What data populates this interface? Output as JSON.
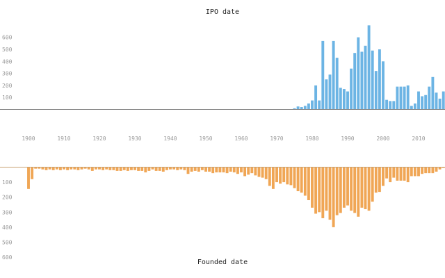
{
  "chart_data": [
    {
      "type": "bar",
      "title": "IPO date",
      "color": "#6cb4e4",
      "x_range": [
        1900,
        2017
      ],
      "ylim": [
        0,
        700
      ],
      "y_ticks": [
        "100",
        "200",
        "300",
        "400",
        "500",
        "600"
      ],
      "x": [
        1975,
        1976,
        1977,
        1978,
        1979,
        1980,
        1981,
        1982,
        1983,
        1984,
        1985,
        1986,
        1987,
        1988,
        1989,
        1990,
        1991,
        1992,
        1993,
        1994,
        1995,
        1996,
        1997,
        1998,
        1999,
        2000,
        2001,
        2002,
        2003,
        2004,
        2005,
        2006,
        2007,
        2008,
        2009,
        2010,
        2011,
        2012,
        2013,
        2014,
        2015,
        2016,
        2017
      ],
      "values": [
        10,
        25,
        20,
        30,
        50,
        75,
        200,
        75,
        570,
        250,
        290,
        570,
        430,
        180,
        170,
        150,
        340,
        470,
        600,
        480,
        530,
        700,
        490,
        320,
        500,
        400,
        80,
        70,
        70,
        190,
        190,
        190,
        200,
        30,
        50,
        150,
        110,
        120,
        190,
        270,
        140,
        90,
        150
      ]
    },
    {
      "type": "bar",
      "title": "Founded date",
      "color": "#f0a655",
      "orientation": "downward",
      "x_range": [
        1900,
        2017
      ],
      "ylim": [
        0,
        600
      ],
      "y_ticks": [
        "100",
        "200",
        "300",
        "400",
        "500",
        "600"
      ],
      "x": [
        1900,
        1901,
        1902,
        1903,
        1904,
        1905,
        1906,
        1907,
        1908,
        1909,
        1910,
        1911,
        1912,
        1913,
        1914,
        1915,
        1916,
        1917,
        1918,
        1919,
        1920,
        1921,
        1922,
        1923,
        1924,
        1925,
        1926,
        1927,
        1928,
        1929,
        1930,
        1931,
        1932,
        1933,
        1934,
        1935,
        1936,
        1937,
        1938,
        1939,
        1940,
        1941,
        1942,
        1943,
        1944,
        1945,
        1946,
        1947,
        1948,
        1949,
        1950,
        1951,
        1952,
        1953,
        1954,
        1955,
        1956,
        1957,
        1958,
        1959,
        1960,
        1961,
        1962,
        1963,
        1964,
        1965,
        1966,
        1967,
        1968,
        1969,
        1970,
        1971,
        1972,
        1973,
        1974,
        1975,
        1976,
        1977,
        1978,
        1979,
        1980,
        1981,
        1982,
        1983,
        1984,
        1985,
        1986,
        1987,
        1988,
        1989,
        1990,
        1991,
        1992,
        1993,
        1994,
        1995,
        1996,
        1997,
        1998,
        1999,
        2000,
        2001,
        2002,
        2003,
        2004,
        2005,
        2006,
        2007,
        2008,
        2009,
        2010,
        2011,
        2012,
        2013,
        2014,
        2015,
        2016,
        2017
      ],
      "values": [
        145,
        80,
        10,
        10,
        15,
        20,
        15,
        20,
        15,
        20,
        15,
        20,
        15,
        15,
        20,
        15,
        10,
        15,
        25,
        15,
        15,
        20,
        15,
        20,
        20,
        25,
        25,
        20,
        25,
        20,
        20,
        25,
        25,
        35,
        25,
        15,
        25,
        25,
        30,
        20,
        15,
        15,
        20,
        15,
        20,
        45,
        30,
        25,
        30,
        20,
        30,
        30,
        40,
        35,
        35,
        35,
        40,
        30,
        35,
        45,
        35,
        60,
        50,
        40,
        55,
        65,
        70,
        80,
        125,
        145,
        100,
        110,
        100,
        115,
        120,
        140,
        160,
        170,
        190,
        220,
        270,
        310,
        300,
        340,
        290,
        350,
        400,
        320,
        305,
        270,
        255,
        290,
        305,
        330,
        270,
        280,
        290,
        230,
        170,
        165,
        125,
        75,
        100,
        70,
        90,
        90,
        90,
        100,
        60,
        60,
        60,
        45,
        40,
        40,
        40,
        30,
        15,
        5
      ]
    }
  ],
  "x_ticks": [
    "1900",
    "1910",
    "1920",
    "1930",
    "1940",
    "1950",
    "1960",
    "1970",
    "1980",
    "1990",
    "2000",
    "2010"
  ]
}
